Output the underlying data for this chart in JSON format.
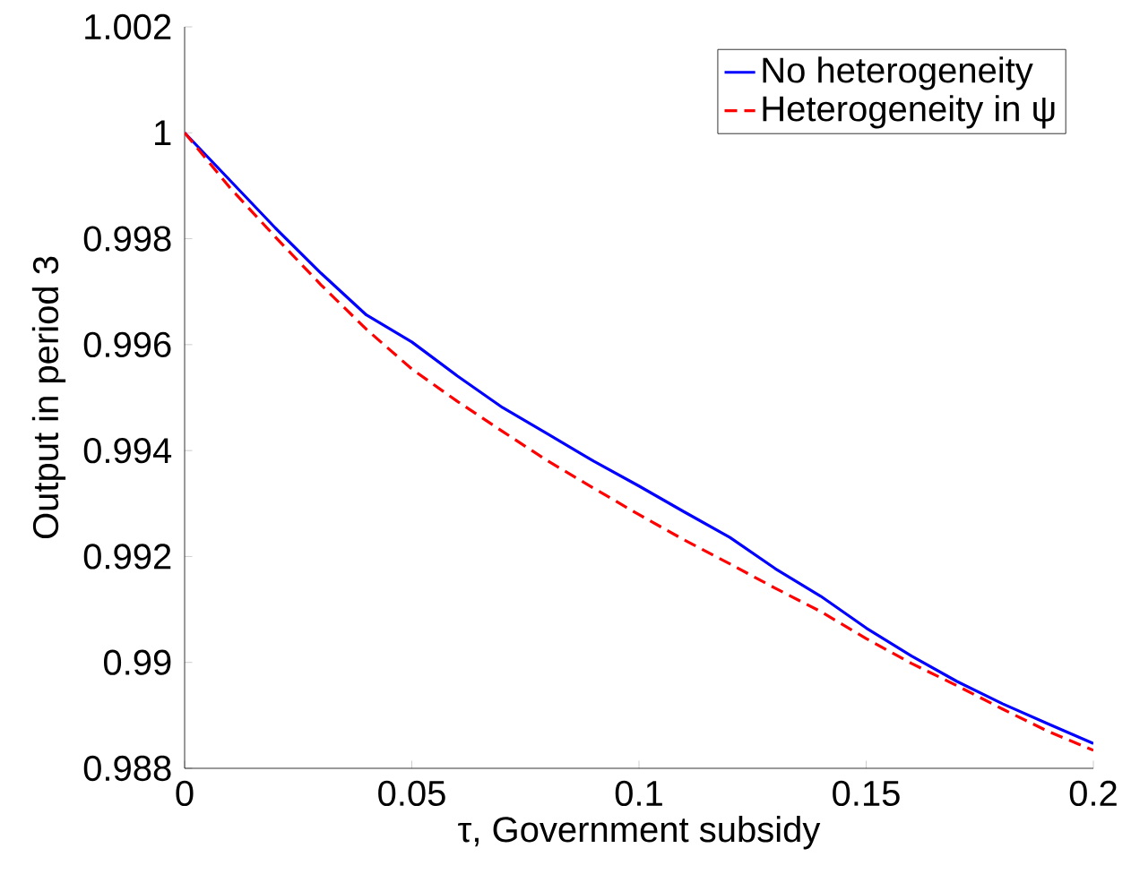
{
  "chart_data": {
    "type": "line",
    "xlabel": "τ, Government subsidy",
    "ylabel": "Output in period 3",
    "x": [
      0,
      0.01,
      0.02,
      0.03,
      0.04,
      0.05,
      0.06,
      0.07,
      0.08,
      0.09,
      0.1,
      0.11,
      0.12,
      0.13,
      0.14,
      0.15,
      0.16,
      0.17,
      0.18,
      0.19,
      0.2
    ],
    "series": [
      {
        "name": "No heterogeneity",
        "color": "#0000ff",
        "line_style": "solid",
        "values": [
          1.0,
          0.9991,
          0.9982,
          0.99735,
          0.99656,
          0.99605,
          0.99541,
          0.99481,
          0.99431,
          0.9938,
          0.99333,
          0.99284,
          0.99236,
          0.99177,
          0.99125,
          0.99065,
          0.99012,
          0.98964,
          0.98922,
          0.98884,
          0.98847
        ]
      },
      {
        "name": "Heterogeneity in ψ",
        "color": "#ff0000",
        "line_style": "dashed",
        "values": [
          1.0,
          0.99896,
          0.99803,
          0.99713,
          0.99629,
          0.99554,
          0.99493,
          0.99436,
          0.9938,
          0.99329,
          0.99279,
          0.99231,
          0.99186,
          0.9914,
          0.99096,
          0.99045,
          0.98998,
          0.98956,
          0.98912,
          0.9887,
          0.98834
        ]
      }
    ],
    "xlim": [
      0,
      0.2
    ],
    "ylim": [
      0.988,
      1.002
    ],
    "xticks": [
      0,
      0.05,
      0.1,
      0.15,
      0.2
    ],
    "yticks": [
      0.988,
      0.99,
      0.992,
      0.994,
      0.996,
      0.998,
      1,
      1.002
    ],
    "grid": false,
    "legend": "top right",
    "marker": "none"
  }
}
